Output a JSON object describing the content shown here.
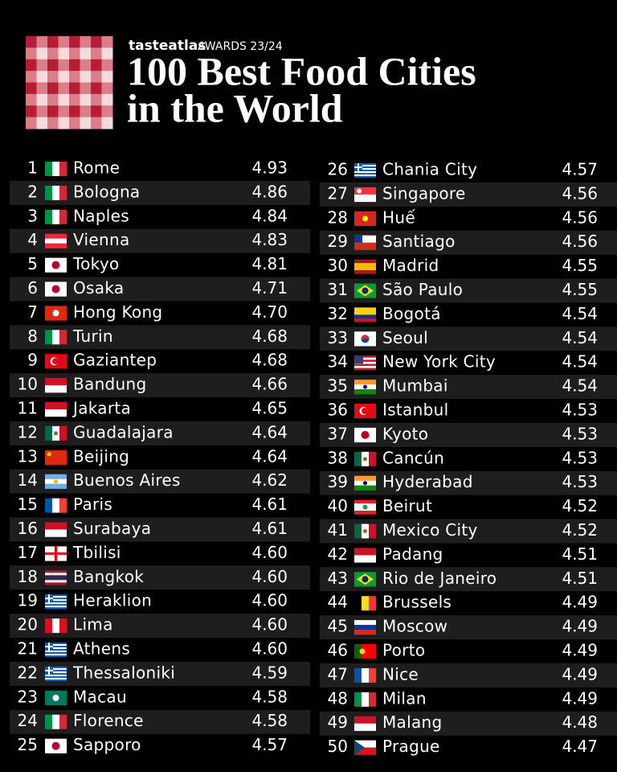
{
  "header": {
    "brand": "tasteatlas",
    "awards": "AWARDS 23/24",
    "title_lines": [
      "100 Best Food Cities",
      "in the World"
    ]
  },
  "table": {
    "rows": [
      [
        1,
        "Rome",
        "4.93"
      ],
      [
        2,
        "Bologna",
        "4.86"
      ],
      [
        3,
        "Naples",
        "4.84"
      ],
      [
        4,
        "Vienna",
        "4.83"
      ],
      [
        5,
        "Tokyo",
        "4.81"
      ],
      [
        6,
        "Osaka",
        "4.71"
      ],
      [
        7,
        "Hong Kong",
        "4.70"
      ],
      [
        8,
        "Turin",
        "4.68"
      ],
      [
        9,
        "Gaziantep",
        "4.68"
      ],
      [
        10,
        "Bandung",
        "4.66"
      ],
      [
        11,
        "Jakarta",
        "4.65"
      ],
      [
        12,
        "Guadalajara",
        "4.64"
      ],
      [
        13,
        "Beijing",
        "4.64"
      ],
      [
        14,
        "Buenos Aires",
        "4.62"
      ],
      [
        15,
        "Paris",
        "4.61"
      ],
      [
        16,
        "Surabaya",
        "4.61"
      ],
      [
        17,
        "Tbilisi",
        "4.60"
      ],
      [
        18,
        "Bangkok",
        "4.60"
      ],
      [
        19,
        "Heraklion",
        "4.60"
      ],
      [
        20,
        "Lima",
        "4.60"
      ],
      [
        21,
        "Athens",
        "4.60"
      ],
      [
        22,
        "Thessaloniki",
        "4.59"
      ],
      [
        23,
        "Macau",
        "4.58"
      ],
      [
        24,
        "Florence",
        "4.58"
      ],
      [
        25,
        "Sapporo",
        "4.57"
      ],
      [
        26,
        "Chania City",
        "4.57"
      ],
      [
        27,
        "Singapore",
        "4.56"
      ],
      [
        28,
        "Huế",
        "4.56"
      ],
      [
        29,
        "Santiago",
        "4.56"
      ],
      [
        30,
        "Madrid",
        "4.55"
      ],
      [
        31,
        "São Paulo",
        "4.55"
      ],
      [
        32,
        "Bogotá",
        "4.54"
      ],
      [
        33,
        "Seoul",
        "4.54"
      ],
      [
        34,
        "New York City",
        "4.54"
      ],
      [
        35,
        "Mumbai",
        "4.54"
      ],
      [
        36,
        "Istanbul",
        "4.53"
      ],
      [
        37,
        "Kyoto",
        "4.53"
      ],
      [
        38,
        "Cancún",
        "4.53"
      ],
      [
        39,
        "Hyderabad",
        "4.53"
      ],
      [
        40,
        "Beirut",
        "4.52"
      ],
      [
        41,
        "Mexico City",
        "4.52"
      ],
      [
        42,
        "Padang",
        "4.51"
      ],
      [
        43,
        "Rio de Janeiro",
        "4.51"
      ],
      [
        44,
        "Brussels",
        "4.49"
      ],
      [
        45,
        "Moscow",
        "4.49"
      ],
      [
        46,
        "Porto",
        "4.49"
      ],
      [
        47,
        "Nice",
        "4.49"
      ],
      [
        48,
        "Milan",
        "4.49"
      ],
      [
        49,
        "Malang",
        "4.48"
      ],
      [
        50,
        "Prague",
        "4.47"
      ]
    ]
  }
}
